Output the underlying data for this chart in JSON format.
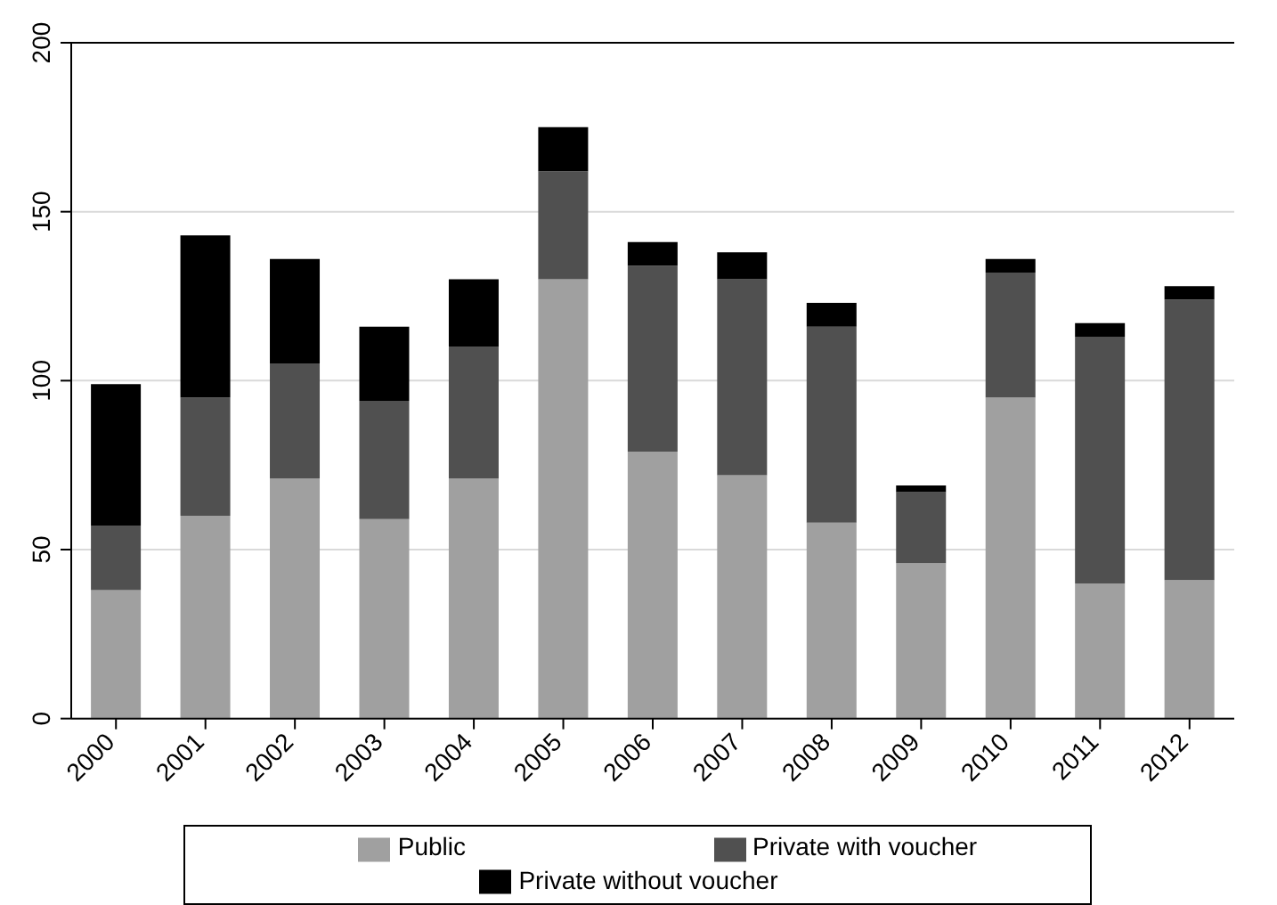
{
  "chart_data": {
    "type": "bar",
    "stacked": true,
    "categories": [
      "2000",
      "2001",
      "2002",
      "2003",
      "2004",
      "2005",
      "2006",
      "2007",
      "2008",
      "2009",
      "2010",
      "2011",
      "2012"
    ],
    "series": [
      {
        "name": "Public",
        "color": "#a0a0a0",
        "values": [
          38,
          60,
          71,
          59,
          71,
          130,
          79,
          72,
          58,
          46,
          95,
          40,
          41
        ]
      },
      {
        "name": "Private with voucher",
        "color": "#505050",
        "values": [
          19,
          35,
          34,
          35,
          39,
          32,
          55,
          58,
          58,
          21,
          37,
          73,
          83
        ]
      },
      {
        "name": "Private without voucher",
        "color": "#000000",
        "values": [
          42,
          48,
          31,
          22,
          20,
          13,
          7,
          8,
          7,
          2,
          4,
          4,
          4
        ]
      }
    ],
    "ylim": [
      0,
      200
    ],
    "yticks": [
      0,
      50,
      100,
      150,
      200
    ],
    "grid": "y",
    "legend": "bottom"
  }
}
